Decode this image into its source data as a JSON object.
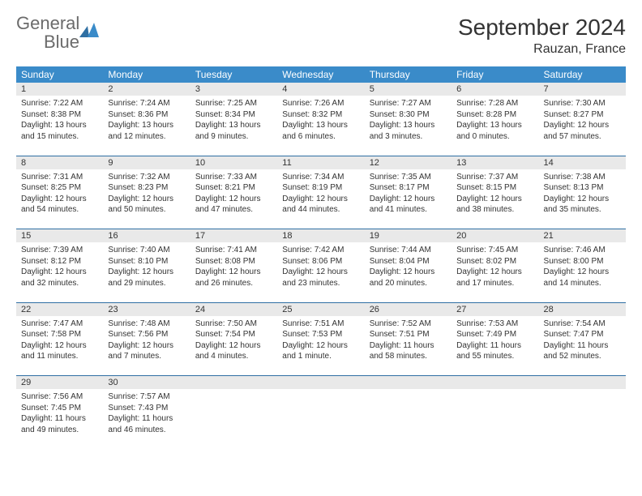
{
  "brand": {
    "name_a": "General",
    "name_b": "Blue"
  },
  "title": "September 2024",
  "location": "Rauzan, France",
  "dow": [
    "Sunday",
    "Monday",
    "Tuesday",
    "Wednesday",
    "Thursday",
    "Friday",
    "Saturday"
  ],
  "colors": {
    "header_bg": "#3a8bc9",
    "daynum_bg": "#e9e9e9",
    "rule": "#2f6fa3",
    "text": "#333333",
    "logo_gray": "#6b6b6b"
  },
  "weeks": [
    [
      {
        "n": "1",
        "sunrise": "7:22 AM",
        "sunset": "8:38 PM",
        "day_h": "13",
        "day_m": "15"
      },
      {
        "n": "2",
        "sunrise": "7:24 AM",
        "sunset": "8:36 PM",
        "day_h": "13",
        "day_m": "12"
      },
      {
        "n": "3",
        "sunrise": "7:25 AM",
        "sunset": "8:34 PM",
        "day_h": "13",
        "day_m": "9"
      },
      {
        "n": "4",
        "sunrise": "7:26 AM",
        "sunset": "8:32 PM",
        "day_h": "13",
        "day_m": "6"
      },
      {
        "n": "5",
        "sunrise": "7:27 AM",
        "sunset": "8:30 PM",
        "day_h": "13",
        "day_m": "3"
      },
      {
        "n": "6",
        "sunrise": "7:28 AM",
        "sunset": "8:28 PM",
        "day_h": "13",
        "day_m": "0"
      },
      {
        "n": "7",
        "sunrise": "7:30 AM",
        "sunset": "8:27 PM",
        "day_h": "12",
        "day_m": "57"
      }
    ],
    [
      {
        "n": "8",
        "sunrise": "7:31 AM",
        "sunset": "8:25 PM",
        "day_h": "12",
        "day_m": "54"
      },
      {
        "n": "9",
        "sunrise": "7:32 AM",
        "sunset": "8:23 PM",
        "day_h": "12",
        "day_m": "50"
      },
      {
        "n": "10",
        "sunrise": "7:33 AM",
        "sunset": "8:21 PM",
        "day_h": "12",
        "day_m": "47"
      },
      {
        "n": "11",
        "sunrise": "7:34 AM",
        "sunset": "8:19 PM",
        "day_h": "12",
        "day_m": "44"
      },
      {
        "n": "12",
        "sunrise": "7:35 AM",
        "sunset": "8:17 PM",
        "day_h": "12",
        "day_m": "41"
      },
      {
        "n": "13",
        "sunrise": "7:37 AM",
        "sunset": "8:15 PM",
        "day_h": "12",
        "day_m": "38"
      },
      {
        "n": "14",
        "sunrise": "7:38 AM",
        "sunset": "8:13 PM",
        "day_h": "12",
        "day_m": "35"
      }
    ],
    [
      {
        "n": "15",
        "sunrise": "7:39 AM",
        "sunset": "8:12 PM",
        "day_h": "12",
        "day_m": "32"
      },
      {
        "n": "16",
        "sunrise": "7:40 AM",
        "sunset": "8:10 PM",
        "day_h": "12",
        "day_m": "29"
      },
      {
        "n": "17",
        "sunrise": "7:41 AM",
        "sunset": "8:08 PM",
        "day_h": "12",
        "day_m": "26"
      },
      {
        "n": "18",
        "sunrise": "7:42 AM",
        "sunset": "8:06 PM",
        "day_h": "12",
        "day_m": "23"
      },
      {
        "n": "19",
        "sunrise": "7:44 AM",
        "sunset": "8:04 PM",
        "day_h": "12",
        "day_m": "20"
      },
      {
        "n": "20",
        "sunrise": "7:45 AM",
        "sunset": "8:02 PM",
        "day_h": "12",
        "day_m": "17"
      },
      {
        "n": "21",
        "sunrise": "7:46 AM",
        "sunset": "8:00 PM",
        "day_h": "12",
        "day_m": "14"
      }
    ],
    [
      {
        "n": "22",
        "sunrise": "7:47 AM",
        "sunset": "7:58 PM",
        "day_h": "12",
        "day_m": "11"
      },
      {
        "n": "23",
        "sunrise": "7:48 AM",
        "sunset": "7:56 PM",
        "day_h": "12",
        "day_m": "7"
      },
      {
        "n": "24",
        "sunrise": "7:50 AM",
        "sunset": "7:54 PM",
        "day_h": "12",
        "day_m": "4"
      },
      {
        "n": "25",
        "sunrise": "7:51 AM",
        "sunset": "7:53 PM",
        "day_h": "12",
        "day_m": "1"
      },
      {
        "n": "26",
        "sunrise": "7:52 AM",
        "sunset": "7:51 PM",
        "day_h": "11",
        "day_m": "58"
      },
      {
        "n": "27",
        "sunrise": "7:53 AM",
        "sunset": "7:49 PM",
        "day_h": "11",
        "day_m": "55"
      },
      {
        "n": "28",
        "sunrise": "7:54 AM",
        "sunset": "7:47 PM",
        "day_h": "11",
        "day_m": "52"
      }
    ],
    [
      {
        "n": "29",
        "sunrise": "7:56 AM",
        "sunset": "7:45 PM",
        "day_h": "11",
        "day_m": "49"
      },
      {
        "n": "30",
        "sunrise": "7:57 AM",
        "sunset": "7:43 PM",
        "day_h": "11",
        "day_m": "46"
      },
      null,
      null,
      null,
      null,
      null
    ]
  ],
  "labels": {
    "sunrise": "Sunrise:",
    "sunset": "Sunset:",
    "daylight_a": "Daylight:",
    "hours": "hours",
    "and": "and",
    "minutes_one": "minute.",
    "minutes": "minutes."
  }
}
